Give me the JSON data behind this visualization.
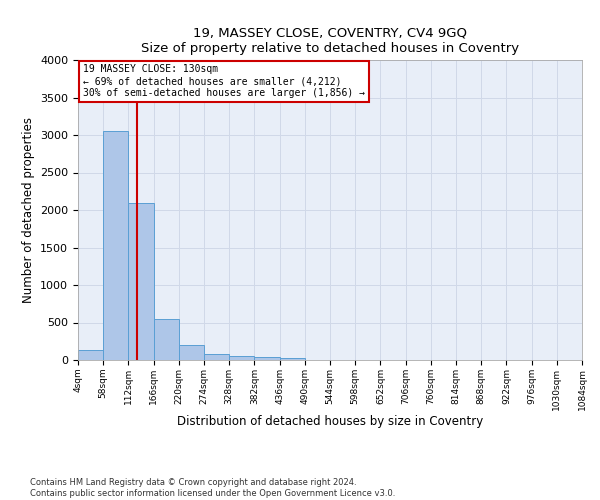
{
  "title": "19, MASSEY CLOSE, COVENTRY, CV4 9GQ",
  "subtitle": "Size of property relative to detached houses in Coventry",
  "xlabel": "Distribution of detached houses by size in Coventry",
  "ylabel": "Number of detached properties",
  "footer_line1": "Contains HM Land Registry data © Crown copyright and database right 2024.",
  "footer_line2": "Contains public sector information licensed under the Open Government Licence v3.0.",
  "bar_color": "#aec6e8",
  "bar_edge_color": "#5a9fd4",
  "grid_color": "#d0d8e8",
  "background_color": "#e8eef8",
  "annotation_box_color": "#cc0000",
  "annotation_line1": "19 MASSEY CLOSE: 130sqm",
  "annotation_line2": "← 69% of detached houses are smaller (4,212)",
  "annotation_line3": "30% of semi-detached houses are larger (1,856) →",
  "bin_edges": [
    4,
    58,
    112,
    166,
    220,
    274,
    328,
    382,
    436,
    490,
    544,
    598,
    652,
    706,
    760,
    814,
    868,
    922,
    976,
    1030,
    1084
  ],
  "bin_counts": [
    140,
    3050,
    2090,
    550,
    200,
    75,
    55,
    40,
    30,
    0,
    0,
    0,
    0,
    0,
    0,
    0,
    0,
    0,
    0,
    0
  ],
  "ylim": [
    0,
    4000
  ],
  "yticks": [
    0,
    500,
    1000,
    1500,
    2000,
    2500,
    3000,
    3500,
    4000
  ],
  "red_line_x": 130
}
